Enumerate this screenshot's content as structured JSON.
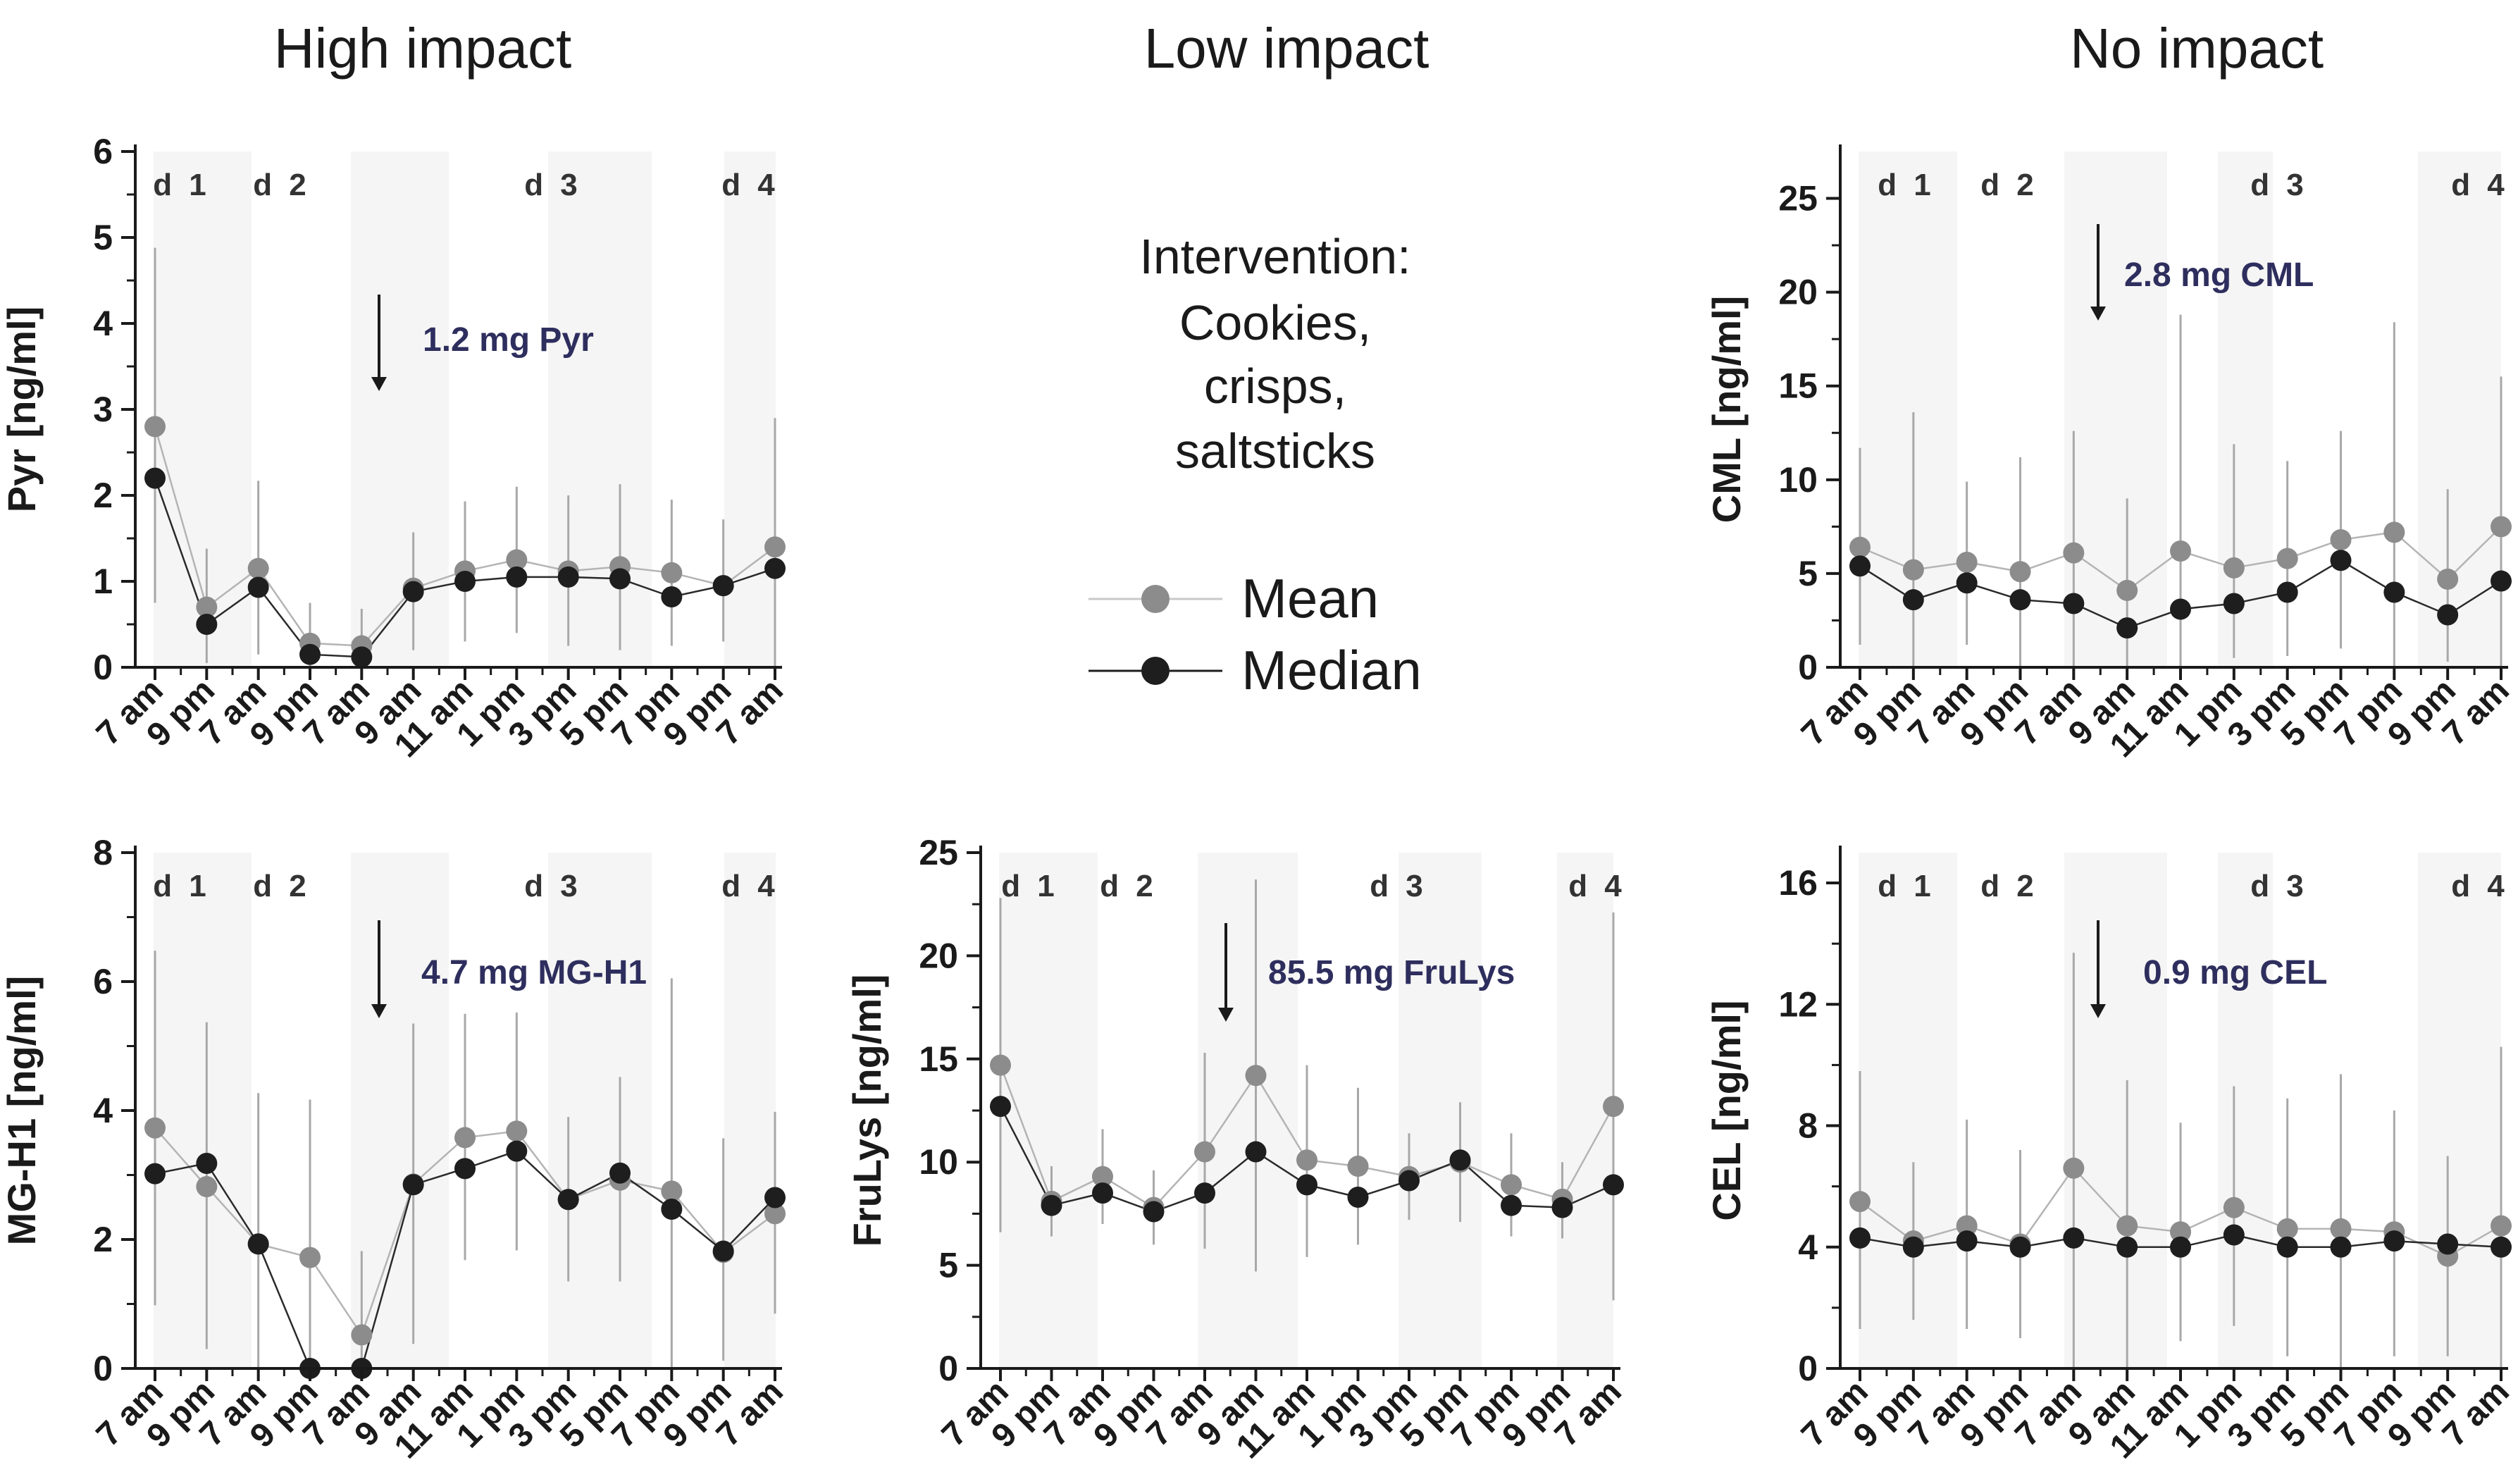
{
  "column_titles": {
    "high": "High impact",
    "low": "Low impact",
    "none": "No impact"
  },
  "legend": {
    "intervention_lines": [
      "Intervention:",
      "Cookies,",
      "crisps,",
      "saltsticks"
    ],
    "mean_label": "Mean",
    "median_label": "Median"
  },
  "colors": {
    "mean": "#8c8c8c",
    "median": "#1e1e1e",
    "error_bar": "#a8a8a8",
    "axis": "#1a1a1a",
    "dose_text": "#2e2e5e",
    "panel_bg": "#f7f7f7"
  },
  "chart_data": [
    {
      "id": "pyr",
      "type": "line",
      "ylabel": "Pyr [ng/ml]",
      "categories": [
        "7 am",
        "9 pm",
        "7 am",
        "9 pm",
        "7 am",
        "9 am",
        "11 am",
        "1 pm",
        "3 pm",
        "5 pm",
        "7 pm",
        "9 pm",
        "7 am"
      ],
      "day_labels": [
        "d 1",
        "d 2",
        "d 3",
        "d 4"
      ],
      "ylim": [
        0,
        6
      ],
      "yticks": [
        0,
        1,
        2,
        3,
        4,
        5,
        6
      ],
      "dose": "1.2 mg Pyr",
      "series": [
        {
          "name": "Mean",
          "values": [
            2.8,
            0.7,
            1.15,
            0.28,
            0.25,
            0.92,
            1.12,
            1.25,
            1.12,
            1.17,
            1.1,
            0.95,
            1.4
          ]
        },
        {
          "name": "Median",
          "values": [
            2.2,
            0.5,
            0.93,
            0.15,
            0.12,
            0.88,
            1.0,
            1.05,
            1.05,
            1.03,
            0.82,
            0.95,
            1.15
          ]
        }
      ],
      "error_bars": [
        [
          0.75,
          4.88
        ],
        [
          0.05,
          1.38
        ],
        [
          0.15,
          2.17
        ],
        [
          0.0,
          0.75
        ],
        [
          0.0,
          0.68
        ],
        [
          0.2,
          1.57
        ],
        [
          0.3,
          1.93
        ],
        [
          0.4,
          2.1
        ],
        [
          0.25,
          2.0
        ],
        [
          0.2,
          2.13
        ],
        [
          0.25,
          1.95
        ],
        [
          0.3,
          1.72
        ],
        [
          0.0,
          2.9
        ]
      ]
    },
    {
      "id": "cml",
      "type": "line",
      "ylabel": "CML [ng/ml]",
      "categories": [
        "7 am",
        "9 pm",
        "7 am",
        "9 pm",
        "7 am",
        "9 am",
        "11 am",
        "1 pm",
        "3 pm",
        "5 pm",
        "7 pm",
        "9 pm",
        "7 am"
      ],
      "day_labels": [
        "d 1",
        "d 2",
        "d 3",
        "d 4"
      ],
      "ylim": [
        0,
        27.5
      ],
      "yticks": [
        0,
        5,
        10,
        15,
        20,
        25
      ],
      "dose": "2.8 mg CML",
      "series": [
        {
          "name": "Mean",
          "values": [
            6.4,
            5.2,
            5.6,
            5.1,
            6.1,
            4.1,
            6.2,
            5.3,
            5.8,
            6.8,
            7.2,
            4.7,
            7.5
          ]
        },
        {
          "name": "Median",
          "values": [
            5.4,
            3.6,
            4.5,
            3.6,
            3.4,
            2.1,
            3.1,
            3.4,
            4.0,
            5.7,
            4.0,
            2.8,
            4.6
          ]
        }
      ],
      "error_bars": [
        [
          1.2,
          11.7
        ],
        [
          0.0,
          13.6
        ],
        [
          1.2,
          9.9
        ],
        [
          0.0,
          11.2
        ],
        [
          0.0,
          12.6
        ],
        [
          0.0,
          9.0
        ],
        [
          0.0,
          18.8
        ],
        [
          0.5,
          11.9
        ],
        [
          0.6,
          11.0
        ],
        [
          1.0,
          12.6
        ],
        [
          0.0,
          18.4
        ],
        [
          0.3,
          9.5
        ],
        [
          0.0,
          15.5
        ]
      ]
    },
    {
      "id": "mgh1",
      "type": "line",
      "ylabel": "MG-H1 [ng/ml]",
      "categories": [
        "7 am",
        "9 pm",
        "7 am",
        "9 pm",
        "7 am",
        "9 am",
        "11 am",
        "1 pm",
        "3 pm",
        "5 pm",
        "7 pm",
        "9 pm",
        "7 am"
      ],
      "day_labels": [
        "d 1",
        "d 2",
        "d 3",
        "d 4"
      ],
      "ylim": [
        0,
        8
      ],
      "yticks": [
        0,
        2,
        4,
        6,
        8
      ],
      "dose": "4.7 mg MG-H1",
      "series": [
        {
          "name": "Mean",
          "values": [
            3.73,
            2.82,
            1.93,
            1.72,
            0.52,
            2.86,
            3.58,
            3.68,
            2.62,
            2.92,
            2.75,
            1.8,
            2.4
          ]
        },
        {
          "name": "Median",
          "values": [
            3.02,
            3.18,
            1.93,
            0.0,
            0.0,
            2.85,
            3.1,
            3.37,
            2.62,
            3.03,
            2.47,
            1.82,
            2.65
          ]
        }
      ],
      "error_bars": [
        [
          0.98,
          6.48
        ],
        [
          0.3,
          5.37
        ],
        [
          0.0,
          4.27
        ],
        [
          0.0,
          4.17
        ],
        [
          0.0,
          1.82
        ],
        [
          0.38,
          5.35
        ],
        [
          1.68,
          5.5
        ],
        [
          1.83,
          5.52
        ],
        [
          1.35,
          3.9
        ],
        [
          1.35,
          4.52
        ],
        [
          0.0,
          6.05
        ],
        [
          0.12,
          3.57
        ],
        [
          0.85,
          3.98
        ]
      ]
    },
    {
      "id": "frulys",
      "type": "line",
      "ylabel": "FruLys [ng/ml]",
      "categories": [
        "7 am",
        "9 pm",
        "7 am",
        "9 pm",
        "7 am",
        "9 am",
        "11 am",
        "1 pm",
        "3 pm",
        "5 pm",
        "7 pm",
        "9 pm",
        "7 am"
      ],
      "day_labels": [
        "d 1",
        "d 2",
        "d 3",
        "d 4"
      ],
      "ylim": [
        0,
        25
      ],
      "yticks": [
        0,
        5,
        10,
        15,
        20,
        25
      ],
      "dose": "85.5 mg FruLys",
      "series": [
        {
          "name": "Mean",
          "values": [
            14.7,
            8.1,
            9.3,
            7.8,
            10.5,
            14.2,
            10.1,
            9.8,
            9.3,
            10.0,
            8.9,
            8.2,
            12.7
          ]
        },
        {
          "name": "Median",
          "values": [
            12.7,
            7.9,
            8.5,
            7.6,
            8.5,
            10.5,
            8.9,
            8.3,
            9.1,
            10.1,
            7.9,
            7.8,
            8.9
          ]
        }
      ],
      "error_bars": [
        [
          6.6,
          22.8
        ],
        [
          6.4,
          9.8
        ],
        [
          7.0,
          11.6
        ],
        [
          6.0,
          9.6
        ],
        [
          5.8,
          15.3
        ],
        [
          4.7,
          23.7
        ],
        [
          5.4,
          14.7
        ],
        [
          6.0,
          13.6
        ],
        [
          7.2,
          11.4
        ],
        [
          7.1,
          12.9
        ],
        [
          6.4,
          11.4
        ],
        [
          6.3,
          10.0
        ],
        [
          3.3,
          22.1
        ]
      ]
    },
    {
      "id": "cel",
      "type": "line",
      "ylabel": "CEL [ng/ml]",
      "categories": [
        "7 am",
        "9 pm",
        "7 am",
        "9 pm",
        "7 am",
        "9 am",
        "11 am",
        "1 pm",
        "3 pm",
        "5 pm",
        "7 pm",
        "9 pm",
        "7 am"
      ],
      "day_labels": [
        "d 1",
        "d 2",
        "d 3",
        "d 4"
      ],
      "ylim": [
        0,
        17
      ],
      "yticks": [
        0,
        4,
        8,
        12,
        16
      ],
      "dose": "0.9 mg CEL",
      "series": [
        {
          "name": "Mean",
          "values": [
            5.5,
            4.2,
            4.7,
            4.1,
            6.6,
            4.7,
            4.5,
            5.3,
            4.6,
            4.6,
            4.5,
            3.7,
            4.7
          ]
        },
        {
          "name": "Median",
          "values": [
            4.3,
            4.0,
            4.2,
            4.0,
            4.3,
            4.0,
            4.0,
            4.4,
            4.0,
            4.0,
            4.2,
            4.1,
            4.0
          ]
        }
      ],
      "error_bars": [
        [
          1.3,
          9.8
        ],
        [
          1.6,
          6.8
        ],
        [
          1.3,
          8.2
        ],
        [
          1.0,
          7.2
        ],
        [
          0.0,
          13.7
        ],
        [
          0.0,
          9.5
        ],
        [
          0.9,
          8.1
        ],
        [
          1.4,
          9.3
        ],
        [
          0.4,
          8.9
        ],
        [
          0.0,
          9.7
        ],
        [
          0.4,
          8.5
        ],
        [
          0.4,
          7.0
        ],
        [
          0.0,
          10.6
        ]
      ]
    }
  ]
}
